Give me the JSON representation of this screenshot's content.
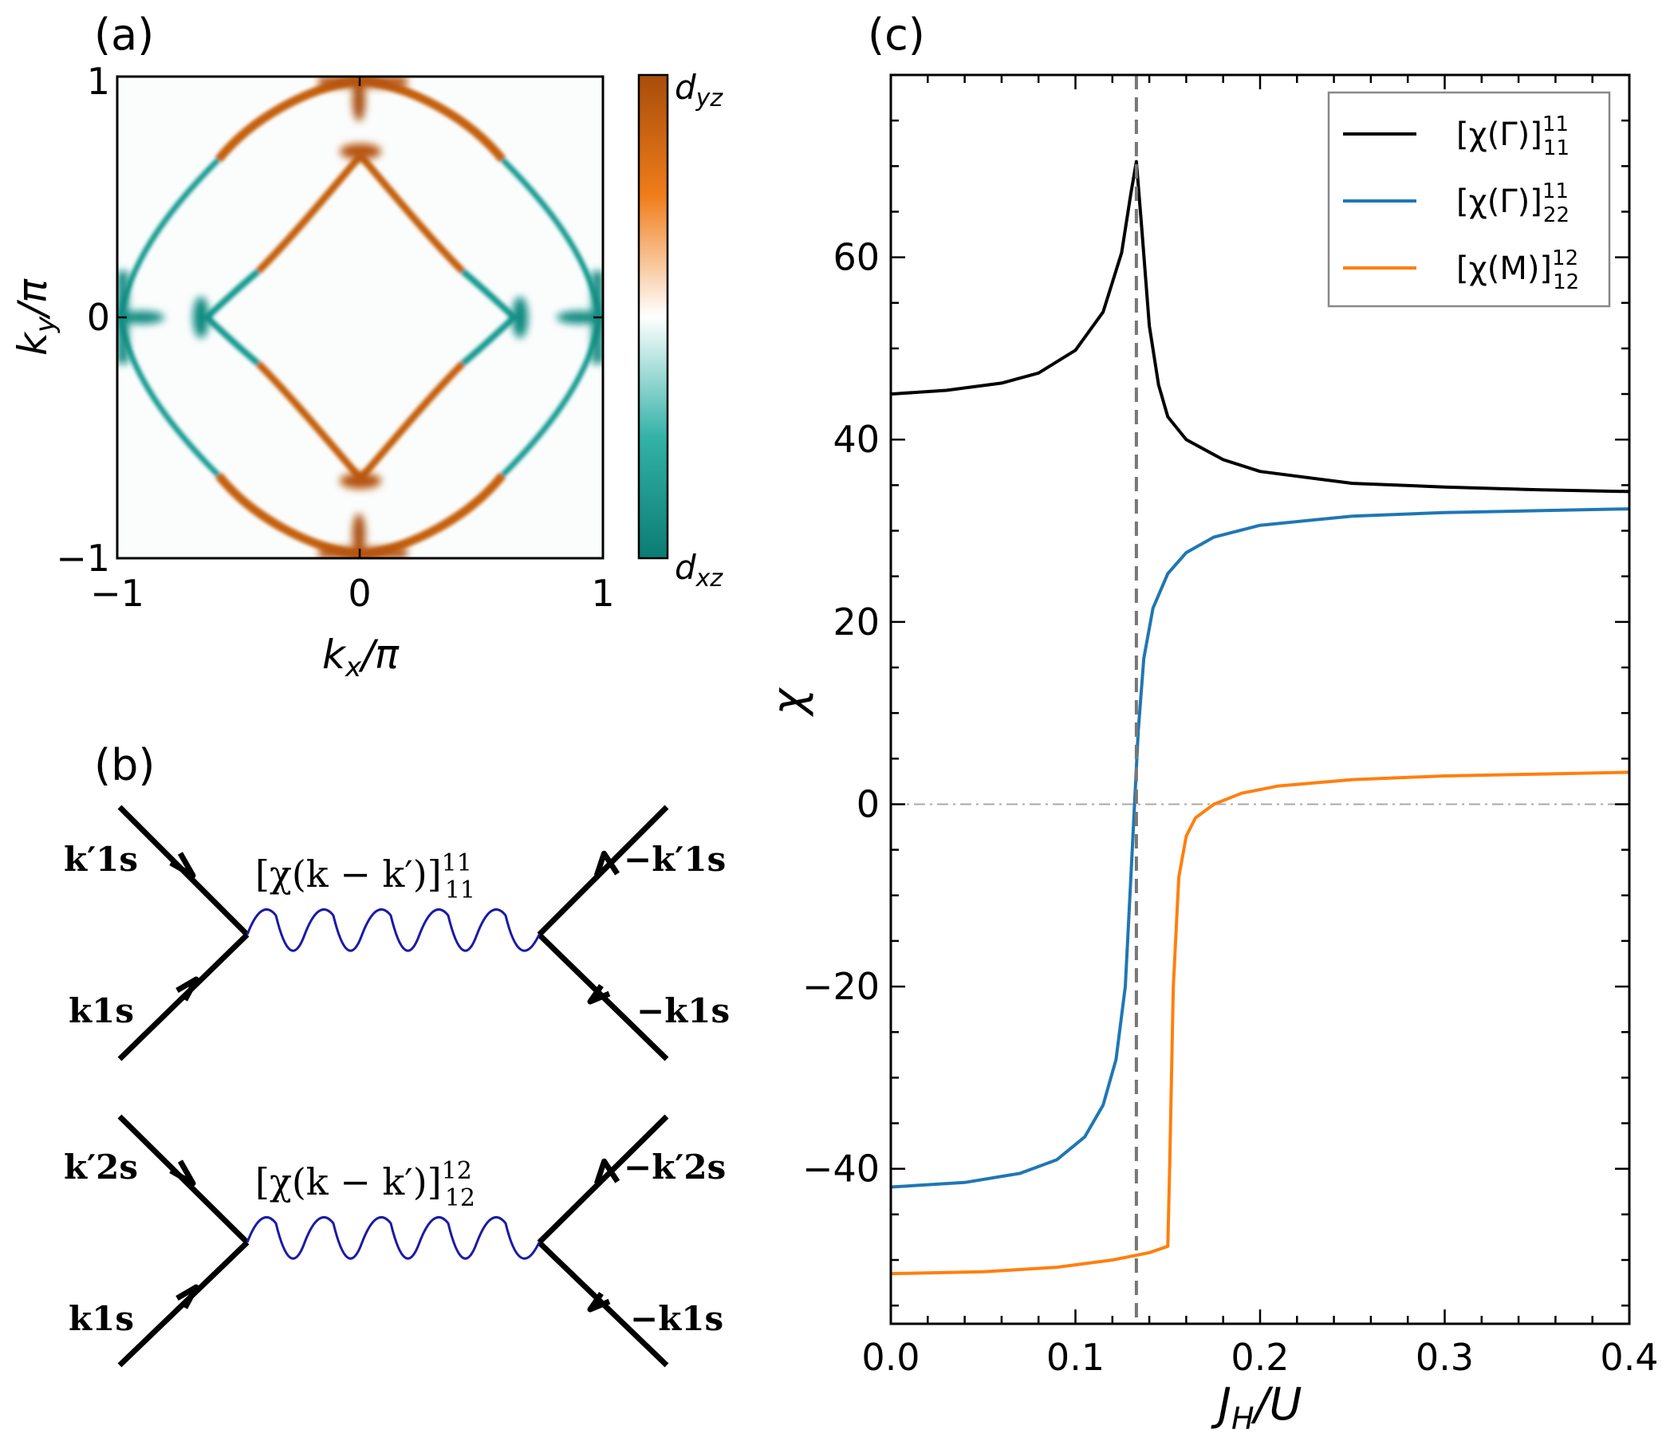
{
  "panel_a": {
    "label": "(a)",
    "x_ticks": [
      "−1",
      "0",
      "1"
    ],
    "y_ticks": [
      "−1",
      "0",
      "1"
    ],
    "xlabel_main": "k",
    "xlabel_sub": "x",
    "xlabel_rest": "/π",
    "ylabel_main": "k",
    "ylabel_sub": "y",
    "ylabel_rest": "/π",
    "colorbar_top_main": "d",
    "colorbar_top_sub": "yz",
    "colorbar_bottom_main": "d",
    "colorbar_bottom_sub": "xz",
    "colors": {
      "dyz": "#b5520c",
      "mid": "#ffffff",
      "dxz": "#0b8a80"
    }
  },
  "panel_b": {
    "label": "(b)",
    "diagram1": {
      "propagator": "[χ(k − k′)]",
      "sup": "11",
      "sub": "11",
      "top_left": "k′1s",
      "bottom_left": "k1s",
      "top_right": "−k′1s",
      "bottom_right": "−k1s"
    },
    "diagram2": {
      "propagator": "[χ(k − k′)]",
      "sup": "12",
      "sub": "12",
      "top_left": "k′2s",
      "bottom_left": "k1s",
      "top_right": "−k′2s",
      "bottom_right": "−k1s"
    },
    "wave_color": "#1a1aa6"
  },
  "chart_data": {
    "type": "line",
    "panel_label": "(c)",
    "xlabel_main": "J",
    "xlabel_sub": "H",
    "xlabel_rest": "/U",
    "ylabel": "χ",
    "xlim": [
      0.0,
      0.4
    ],
    "ylim": [
      -57,
      80
    ],
    "x_ticks": [
      "0.0",
      "0.1",
      "0.2",
      "0.3",
      "0.4"
    ],
    "y_ticks": [
      "−40",
      "−20",
      "0",
      "20",
      "40",
      "60"
    ],
    "critical_x": 0.133,
    "legend_position": "top-right",
    "series": [
      {
        "name": "[χ(Γ)]",
        "legend_sup": "11",
        "legend_sub": "11",
        "color": "#000000",
        "points": [
          [
            0.0,
            45.0
          ],
          [
            0.03,
            45.4
          ],
          [
            0.06,
            46.2
          ],
          [
            0.08,
            47.3
          ],
          [
            0.1,
            49.8
          ],
          [
            0.115,
            54.0
          ],
          [
            0.125,
            60.5
          ],
          [
            0.13,
            67.0
          ],
          [
            0.133,
            70.5
          ],
          [
            0.136,
            63.0
          ],
          [
            0.14,
            52.5
          ],
          [
            0.145,
            46.0
          ],
          [
            0.15,
            42.5
          ],
          [
            0.16,
            40.0
          ],
          [
            0.18,
            37.8
          ],
          [
            0.2,
            36.5
          ],
          [
            0.25,
            35.2
          ],
          [
            0.3,
            34.8
          ],
          [
            0.35,
            34.5
          ],
          [
            0.4,
            34.3
          ]
        ]
      },
      {
        "name": "[χ(Γ)]",
        "legend_sup": "11",
        "legend_sub": "22",
        "color": "#1f77b4",
        "points": [
          [
            0.0,
            -42.0
          ],
          [
            0.04,
            -41.5
          ],
          [
            0.07,
            -40.5
          ],
          [
            0.09,
            -39.0
          ],
          [
            0.105,
            -36.5
          ],
          [
            0.115,
            -33.0
          ],
          [
            0.122,
            -28.0
          ],
          [
            0.127,
            -20.0
          ],
          [
            0.13,
            -8.0
          ],
          [
            0.132,
            0.0
          ],
          [
            0.134,
            8.0
          ],
          [
            0.137,
            16.0
          ],
          [
            0.142,
            21.5
          ],
          [
            0.15,
            25.3
          ],
          [
            0.16,
            27.6
          ],
          [
            0.175,
            29.3
          ],
          [
            0.2,
            30.6
          ],
          [
            0.25,
            31.6
          ],
          [
            0.3,
            32.0
          ],
          [
            0.35,
            32.2
          ],
          [
            0.4,
            32.4
          ]
        ]
      },
      {
        "name": "[χ(M)]",
        "legend_sup": "12",
        "legend_sub": "12",
        "color": "#ff7f0e",
        "points": [
          [
            0.0,
            -51.5
          ],
          [
            0.05,
            -51.3
          ],
          [
            0.09,
            -50.8
          ],
          [
            0.12,
            -50.0
          ],
          [
            0.14,
            -49.2
          ],
          [
            0.15,
            -48.5
          ],
          [
            0.151,
            -40.0
          ],
          [
            0.153,
            -20.0
          ],
          [
            0.156,
            -8.0
          ],
          [
            0.16,
            -3.5
          ],
          [
            0.165,
            -1.5
          ],
          [
            0.175,
            0.0
          ],
          [
            0.19,
            1.2
          ],
          [
            0.21,
            2.0
          ],
          [
            0.25,
            2.7
          ],
          [
            0.3,
            3.1
          ],
          [
            0.35,
            3.3
          ],
          [
            0.4,
            3.5
          ]
        ]
      }
    ]
  }
}
